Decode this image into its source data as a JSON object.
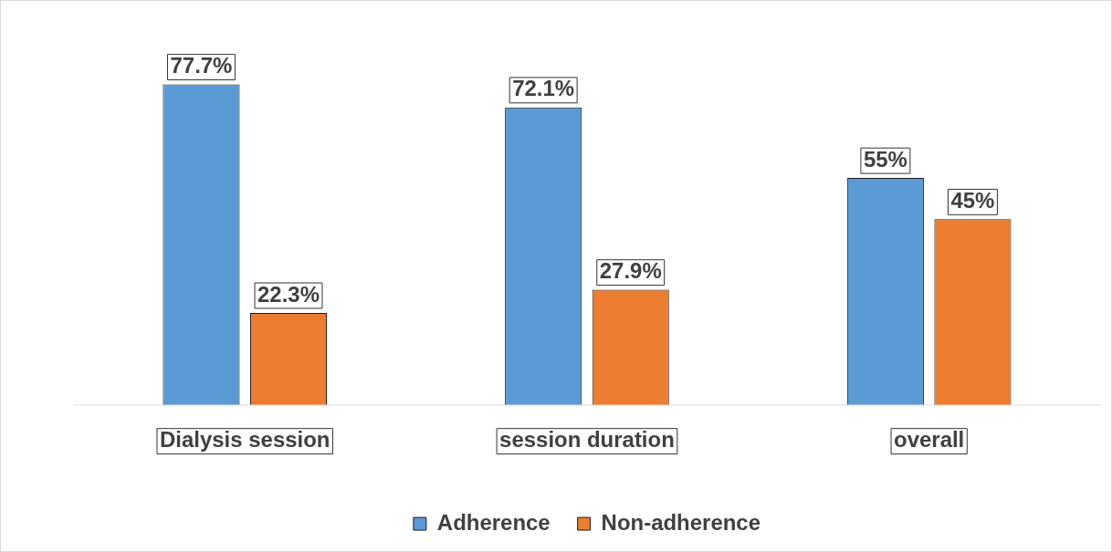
{
  "chart_data": {
    "type": "bar",
    "categories": [
      "Dialysis session",
      "session duration",
      "overall"
    ],
    "series": [
      {
        "name": "Adherence",
        "color": "#5b9bd5",
        "values": [
          77.7,
          72.1,
          55
        ],
        "value_labels": [
          "77.7%",
          "72.1%",
          "55%"
        ]
      },
      {
        "name": "Non-adherence",
        "color": "#ed7d31",
        "values": [
          22.3,
          27.9,
          45
        ],
        "value_labels": [
          "22.3%",
          "27.9%",
          "45%"
        ]
      }
    ],
    "tick_labels": "x",
    "grid": false,
    "legend": "bottom"
  }
}
